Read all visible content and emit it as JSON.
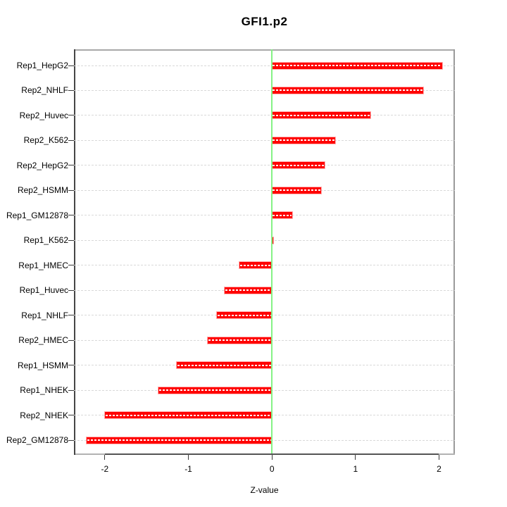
{
  "title": "GFI1.p2",
  "colors": {
    "bar": "#ff0000",
    "bar_edge": "#ffb0b0",
    "bar_dash": "#ffffff",
    "grid": "#d9d9d9",
    "zero_line": "#85f285",
    "box_border": "#9a9a9a",
    "axis_dark": "#545454",
    "text": "#000000"
  },
  "chart_data": {
    "type": "bar",
    "orientation": "horizontal",
    "title": "GFI1.p2",
    "xlabel": "Z-value",
    "ylabel": "",
    "xlim": [
      -2.37,
      2.19
    ],
    "xticks": [
      -2,
      -1,
      0,
      1,
      2
    ],
    "grid": "dashed horizontal line per category, full plot width",
    "zero_reference_line": 0,
    "legend": "none",
    "categories": [
      "Rep1_HepG2",
      "Rep2_NHLF",
      "Rep2_Huvec",
      "Rep2_K562",
      "Rep2_HepG2",
      "Rep2_HSMM",
      "Rep1_GM12878",
      "Rep1_K562",
      "Rep1_HMEC",
      "Rep1_Huvec",
      "Rep1_NHLF",
      "Rep2_HMEC",
      "Rep1_HSMM",
      "Rep1_NHEK",
      "Rep2_NHEK",
      "Rep2_GM12878"
    ],
    "values": [
      2.04,
      1.81,
      1.18,
      0.76,
      0.63,
      0.59,
      0.24,
      0.01,
      -0.39,
      -0.57,
      -0.66,
      -0.77,
      -1.14,
      -1.36,
      -2.0,
      -2.22
    ]
  }
}
